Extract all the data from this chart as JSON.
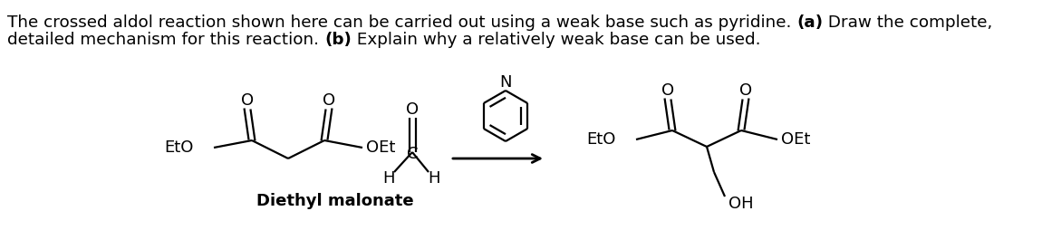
{
  "line1_normal": "The crossed aldol reaction shown here can be carried out using a weak base such as pyridine. ",
  "line1_bold": "(a)",
  "line1_rest": " Draw the complete,",
  "line2_normal": "detailed mechanism for this reaction. ",
  "line2_bold": "(b)",
  "line2_rest": " Explain why a relatively weak base can be used.",
  "label_DM": "Diethyl malonate",
  "background_color": "#ffffff",
  "text_color": "#000000",
  "font_size_text": 13.2,
  "font_size_chem": 13.0,
  "lw": 1.6
}
